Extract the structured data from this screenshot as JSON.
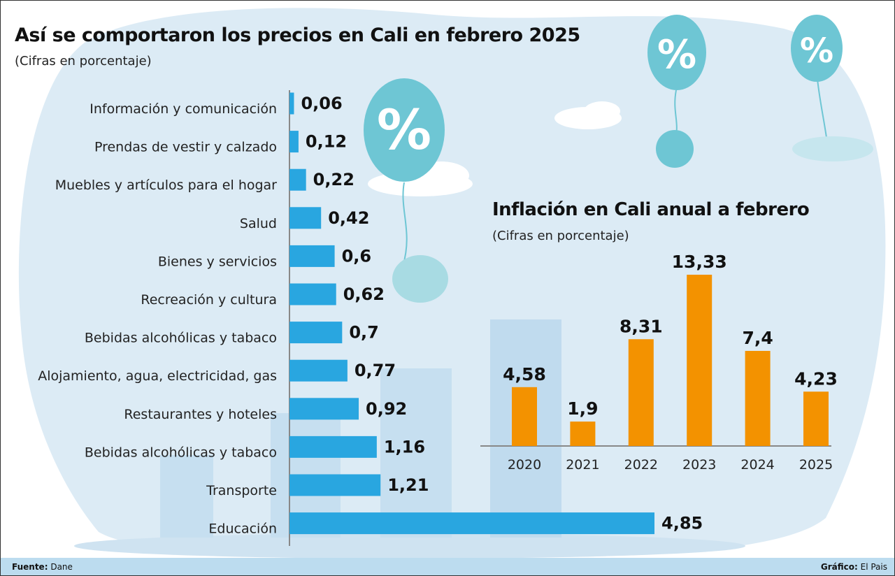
{
  "colors": {
    "horizontal_bar": "#29a6e0",
    "vertical_bar": "#f39200",
    "background_blob": "#dcebf5",
    "balloon": "#6ec6d4",
    "footer": "#bcdcef"
  },
  "icons": [
    "percent-balloon-icon",
    "percent-balloon-icon",
    "percent-balloon-icon",
    "cloud-icon"
  ],
  "chart_data": [
    {
      "type": "bar",
      "orientation": "horizontal",
      "title": "Así se comportaron los precios en Cali en febrero 2025",
      "subtitle": "(Cifras en porcentaje)",
      "categories": [
        "Información y comunicación",
        "Prendas de vestir y calzado",
        "Muebles y artículos para el hogar",
        "Salud",
        "Bienes y servicios",
        "Recreación y cultura",
        "Bebidas alcohólicas y tabaco",
        "Alojamiento, agua, electricidad, gas",
        "Restaurantes y hoteles",
        "Bebidas alcohólicas y tabaco",
        "Transporte",
        "Educación"
      ],
      "values": [
        0.06,
        0.12,
        0.22,
        0.42,
        0.6,
        0.62,
        0.7,
        0.77,
        0.92,
        1.16,
        1.21,
        4.85
      ],
      "labels": [
        "0,06",
        "0,12",
        "0,22",
        "0,42",
        "0,6",
        "0,62",
        "0,7",
        "0,77",
        "0,92",
        "1,16",
        "1,21",
        "4,85"
      ],
      "xlim": [
        0,
        4.85
      ],
      "grid": false
    },
    {
      "type": "bar",
      "orientation": "vertical",
      "title": "Inflación en Cali anual a febrero",
      "subtitle": "(Cifras en porcentaje)",
      "categories": [
        "2020",
        "2021",
        "2022",
        "2023",
        "2024",
        "2025"
      ],
      "values": [
        4.58,
        1.9,
        8.31,
        13.33,
        7.4,
        4.23
      ],
      "labels": [
        "4,58",
        "1,9",
        "8,31",
        "13,33",
        "7,4",
        "4,23"
      ],
      "ylim": [
        0,
        13.33
      ],
      "grid": false
    }
  ],
  "footer": {
    "source_label": "Fuente:",
    "source": "Dane",
    "credit_label": "Gráfico:",
    "credit": "El Pais"
  }
}
